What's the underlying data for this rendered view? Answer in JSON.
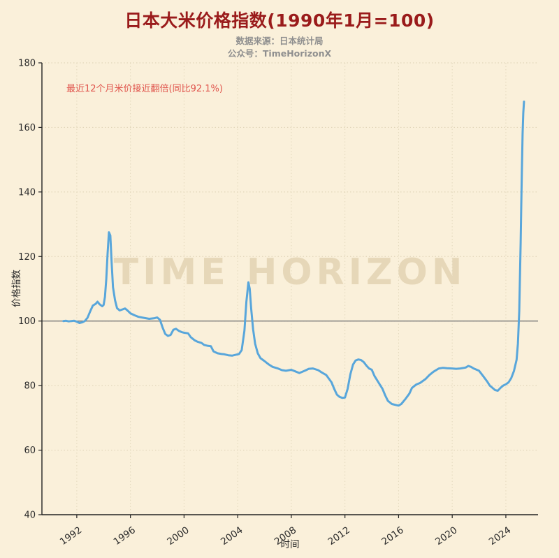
{
  "header": {
    "title": "日本大米价格指数(1990年1月=100)",
    "subtitle_source": "数据来源：日本统计局",
    "subtitle_account": "公众号：TimeHorizonX"
  },
  "annotation": {
    "text": "最近12个月米价接近翻倍(同比92.1%)"
  },
  "watermark": {
    "text": "TIME HORIZON"
  },
  "colors": {
    "background": "#FAF0DA",
    "title": "#9A1B1B",
    "subtitle": "#8F8F8F",
    "annotation": "#E0544C",
    "line": "#58A6DB",
    "reference_line": "#777777",
    "axis": "#222222"
  },
  "chart_data": {
    "type": "line",
    "title": "日本大米价格指数(1990年1月=100)",
    "xlabel": "时间",
    "ylabel": "价格指数",
    "ylim": [
      40,
      180
    ],
    "yticks": [
      40,
      60,
      80,
      100,
      120,
      140,
      160,
      180
    ],
    "xlim": [
      1989.4,
      2026.4
    ],
    "xticks": [
      1992,
      1996,
      2000,
      2004,
      2008,
      2012,
      2016,
      2020,
      2024
    ],
    "reference_line_y": 100,
    "grid": true,
    "legend": "none",
    "series": [
      {
        "name": "大米价格指数",
        "color": "#58A6DB",
        "x": [
          1991.0,
          1991.2,
          1991.4,
          1991.6,
          1991.8,
          1992.0,
          1992.2,
          1992.4,
          1992.6,
          1992.8,
          1993.0,
          1993.2,
          1993.4,
          1993.55,
          1993.7,
          1993.9,
          1994.0,
          1994.1,
          1994.2,
          1994.3,
          1994.4,
          1994.5,
          1994.6,
          1994.7,
          1994.85,
          1995.0,
          1995.2,
          1995.4,
          1995.6,
          1995.8,
          1996.0,
          1996.3,
          1996.6,
          1997.0,
          1997.4,
          1997.8,
          1998.0,
          1998.2,
          1998.4,
          1998.6,
          1998.8,
          1999.0,
          1999.2,
          1999.4,
          1999.6,
          1999.8,
          2000.0,
          2000.3,
          2000.5,
          2000.8,
          2001.0,
          2001.3,
          2001.5,
          2001.8,
          2002.0,
          2002.2,
          2002.5,
          2002.8,
          2003.0,
          2003.3,
          2003.6,
          2003.9,
          2004.1,
          2004.3,
          2004.5,
          2004.65,
          2004.8,
          2004.9,
          2005.0,
          2005.15,
          2005.3,
          2005.5,
          2005.7,
          2006.0,
          2006.3,
          2006.6,
          2007.0,
          2007.3,
          2007.6,
          2008.0,
          2008.3,
          2008.6,
          2009.0,
          2009.3,
          2009.6,
          2010.0,
          2010.3,
          2010.6,
          2011.0,
          2011.2,
          2011.4,
          2011.6,
          2011.8,
          2012.0,
          2012.2,
          2012.4,
          2012.6,
          2012.8,
          2013.0,
          2013.2,
          2013.4,
          2013.6,
          2013.8,
          2014.0,
          2014.2,
          2014.5,
          2014.8,
          2015.0,
          2015.2,
          2015.5,
          2015.8,
          2016.0,
          2016.2,
          2016.5,
          2016.8,
          2017.0,
          2017.3,
          2017.6,
          2018.0,
          2018.3,
          2018.6,
          2019.0,
          2019.3,
          2019.6,
          2020.0,
          2020.3,
          2020.6,
          2021.0,
          2021.2,
          2021.4,
          2021.6,
          2022.0,
          2022.3,
          2022.6,
          2022.8,
          2023.0,
          2023.2,
          2023.4,
          2023.6,
          2023.8,
          2024.0,
          2024.2,
          2024.4,
          2024.6,
          2024.8,
          2024.9,
          2025.0,
          2025.1,
          2025.15,
          2025.2,
          2025.25,
          2025.3,
          2025.35
        ],
        "y": [
          100.0,
          100.1,
          99.9,
          100.0,
          100.1,
          99.8,
          99.4,
          99.6,
          100.0,
          101.0,
          103.0,
          104.8,
          105.3,
          106.0,
          105.2,
          104.6,
          105.0,
          107.5,
          113.0,
          121.0,
          127.5,
          126.5,
          118.0,
          110.5,
          106.5,
          104.0,
          103.3,
          103.6,
          103.9,
          103.2,
          102.4,
          101.8,
          101.3,
          101.0,
          100.7,
          100.9,
          101.1,
          100.4,
          98.0,
          96.0,
          95.4,
          95.7,
          97.3,
          97.6,
          97.0,
          96.6,
          96.4,
          96.2,
          95.0,
          94.0,
          93.6,
          93.2,
          92.6,
          92.3,
          92.2,
          90.6,
          90.0,
          89.8,
          89.7,
          89.4,
          89.3,
          89.6,
          89.8,
          91.0,
          97.0,
          106.0,
          112.0,
          110.0,
          104.0,
          97.5,
          93.0,
          90.0,
          88.5,
          87.6,
          86.6,
          85.8,
          85.3,
          84.8,
          84.6,
          84.9,
          84.4,
          83.9,
          84.6,
          85.2,
          85.3,
          84.8,
          84.0,
          83.3,
          81.0,
          79.0,
          77.2,
          76.5,
          76.2,
          76.3,
          79.0,
          83.5,
          86.5,
          87.8,
          88.1,
          87.9,
          87.3,
          86.2,
          85.3,
          84.9,
          83.0,
          81.0,
          79.0,
          77.0,
          75.3,
          74.3,
          74.0,
          73.8,
          74.3,
          75.8,
          77.5,
          79.3,
          80.3,
          80.8,
          82.0,
          83.3,
          84.3,
          85.3,
          85.5,
          85.4,
          85.3,
          85.2,
          85.3,
          85.6,
          86.1,
          85.8,
          85.3,
          84.6,
          83.0,
          81.3,
          80.0,
          79.3,
          78.6,
          78.4,
          79.3,
          80.0,
          80.4,
          81.0,
          82.3,
          84.5,
          88.0,
          93.0,
          103.0,
          124.0,
          136.0,
          148.0,
          158.0,
          164.5,
          168.0
        ]
      }
    ]
  }
}
